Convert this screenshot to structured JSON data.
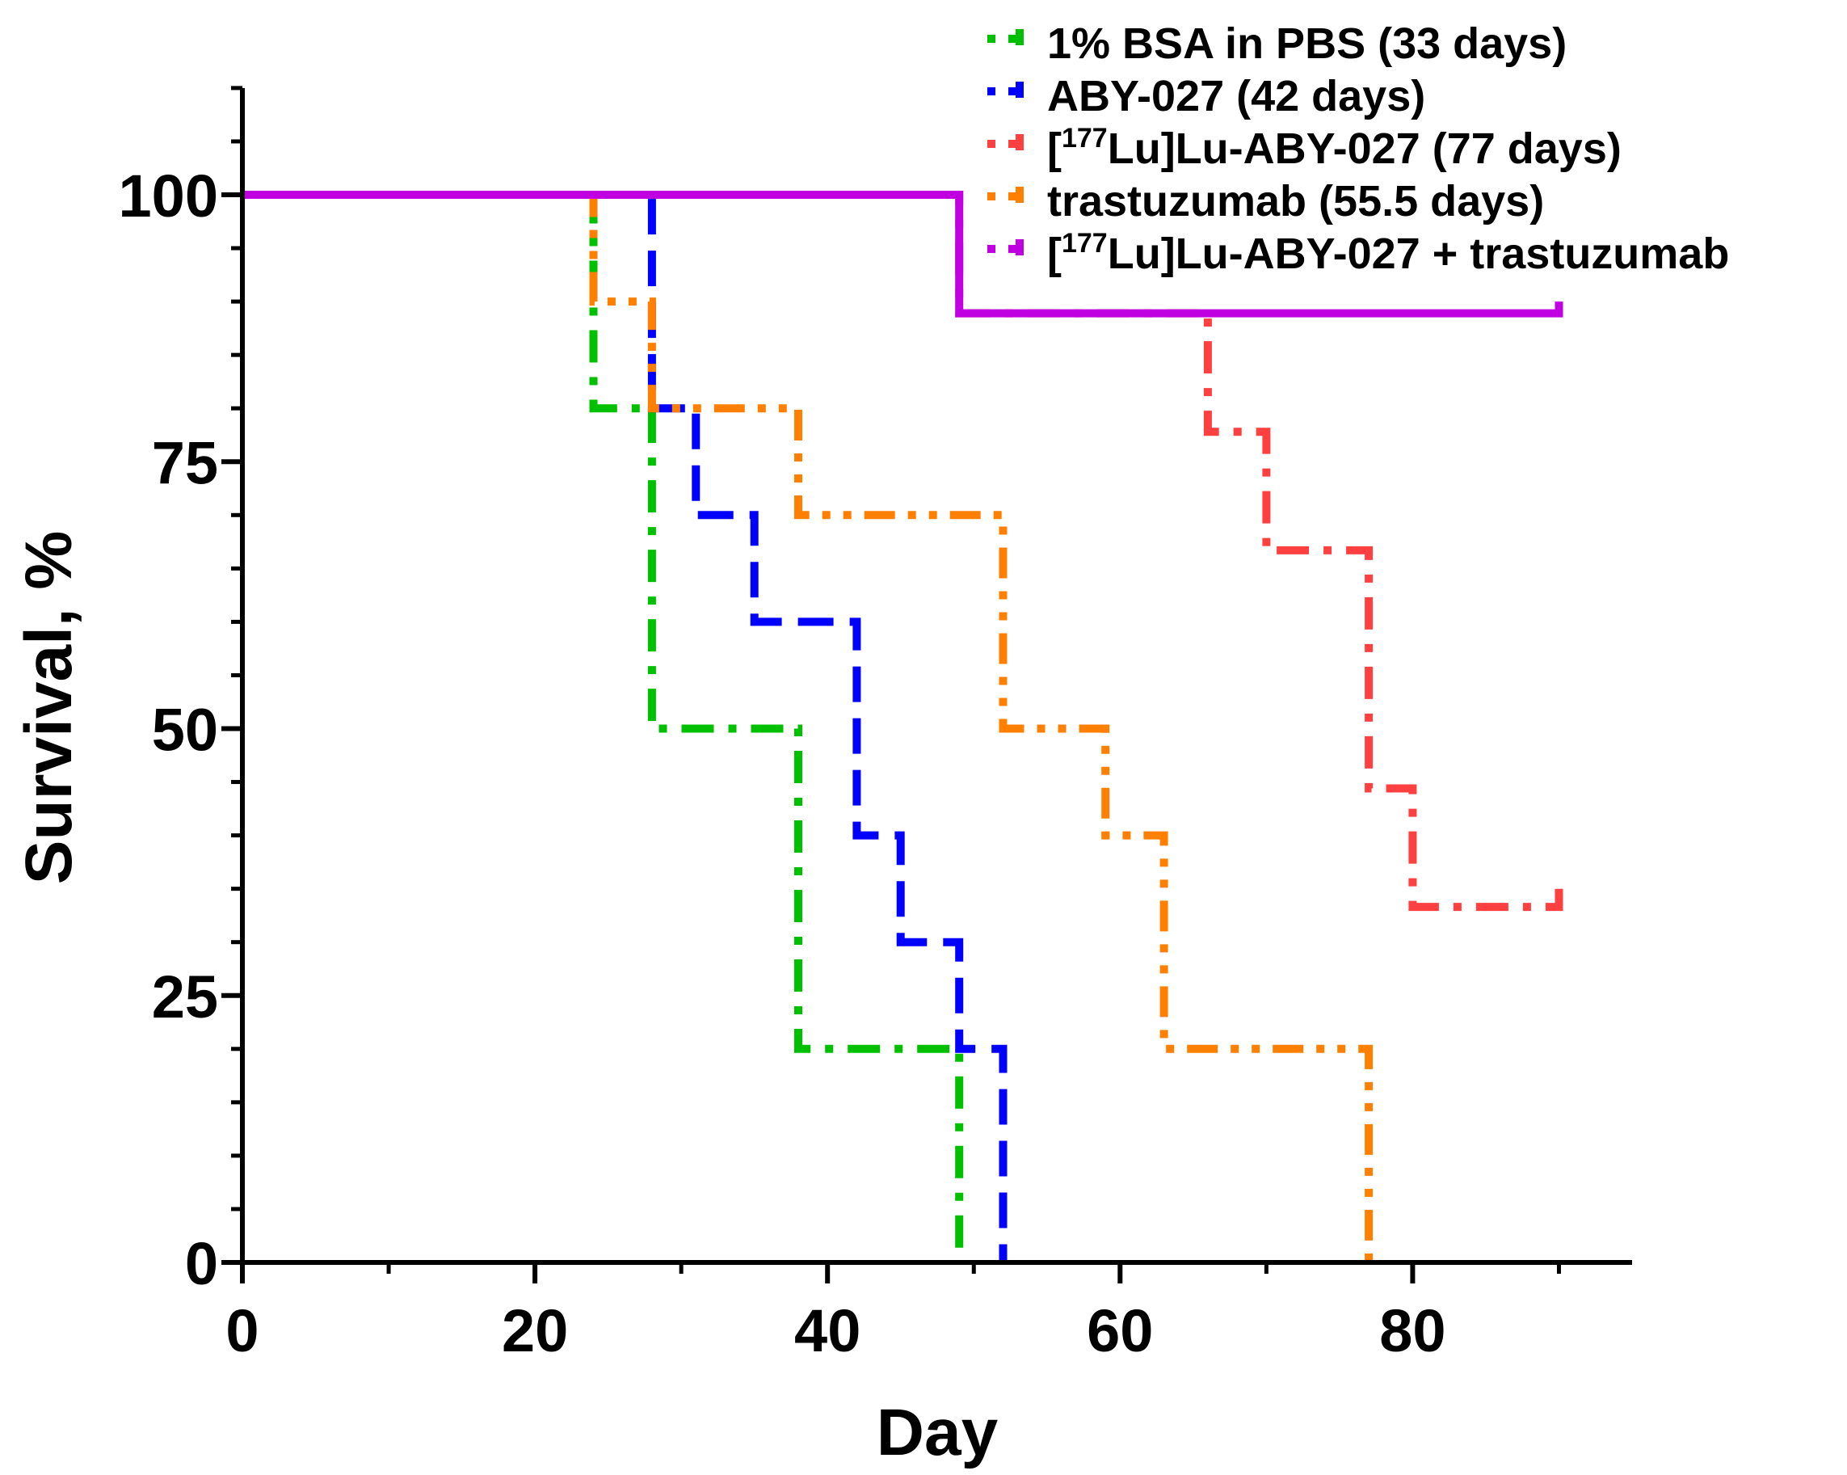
{
  "chart_data": {
    "type": "line",
    "subtype": "kaplan-meier step",
    "xlabel": "Day",
    "ylabel": "Survival, %",
    "xlim": [
      0,
      95
    ],
    "ylim": [
      0,
      110
    ],
    "xticks": [
      0,
      20,
      40,
      60,
      80
    ],
    "xtick_labels": [
      "0",
      "20",
      "40",
      "60",
      "80"
    ],
    "yticks": [
      0,
      25,
      50,
      75,
      100
    ],
    "ytick_labels": [
      "0",
      "25",
      "50",
      "75",
      "100"
    ],
    "grid": false,
    "legend_position": "top-right",
    "series": [
      {
        "name": "1% BSA in PBS (33 days)",
        "legend_parts": [
          "1% BSA in PBS (33 days)"
        ],
        "color": "#00c000",
        "dash": "dashdot",
        "points": [
          [
            0,
            100
          ],
          [
            24,
            100
          ],
          [
            24,
            80
          ],
          [
            28,
            80
          ],
          [
            28,
            50
          ],
          [
            38,
            50
          ],
          [
            38,
            20
          ],
          [
            49,
            20
          ],
          [
            49,
            0
          ]
        ]
      },
      {
        "name": "ABY-027 (42 days)",
        "legend_parts": [
          "ABY-027 (42 days)"
        ],
        "color": "#0000ff",
        "dash": "dash",
        "points": [
          [
            0,
            100
          ],
          [
            28,
            100
          ],
          [
            28,
            80
          ],
          [
            31,
            80
          ],
          [
            31,
            70
          ],
          [
            35,
            70
          ],
          [
            35,
            60
          ],
          [
            42,
            60
          ],
          [
            42,
            40
          ],
          [
            45,
            40
          ],
          [
            45,
            30
          ],
          [
            49,
            30
          ],
          [
            49,
            20
          ],
          [
            52,
            20
          ],
          [
            52,
            0
          ]
        ]
      },
      {
        "name": "[177Lu]Lu-ABY-027 (77 days)",
        "legend_parts": [
          "[",
          "177",
          "Lu]Lu-ABY-027 (77 days)"
        ],
        "color": "#ff4040",
        "dash": "dashdot",
        "points": [
          [
            0,
            100
          ],
          [
            49,
            100
          ],
          [
            49,
            88.9
          ],
          [
            66,
            88.9
          ],
          [
            66,
            77.8
          ],
          [
            70,
            77.8
          ],
          [
            70,
            66.7
          ],
          [
            77,
            66.7
          ],
          [
            77,
            44.4
          ],
          [
            80,
            44.4
          ],
          [
            80,
            33.3
          ],
          [
            90,
            33.3
          ],
          [
            90,
            35
          ]
        ]
      },
      {
        "name": "trastuzumab (55.5 days)",
        "legend_parts": [
          "trastuzumab (55.5 days)"
        ],
        "color": "#ff8000",
        "dash": "dashdotdot",
        "points": [
          [
            0,
            100
          ],
          [
            24,
            100
          ],
          [
            24,
            90
          ],
          [
            28,
            90
          ],
          [
            28,
            80
          ],
          [
            38,
            80
          ],
          [
            38,
            70
          ],
          [
            52,
            70
          ],
          [
            52,
            50
          ],
          [
            59,
            50
          ],
          [
            59,
            40
          ],
          [
            63,
            40
          ],
          [
            63,
            20
          ],
          [
            77,
            20
          ],
          [
            77,
            0
          ]
        ]
      },
      {
        "name": "[177Lu]Lu-ABY-027 + trastuzumab",
        "legend_parts": [
          "[",
          "177",
          "Lu]Lu-ABY-027 + trastuzumab"
        ],
        "color": "#c000e0",
        "dash": "solid",
        "points": [
          [
            0,
            100
          ],
          [
            49,
            100
          ],
          [
            49,
            88.9
          ],
          [
            90,
            88.9
          ],
          [
            90,
            90
          ]
        ]
      }
    ]
  }
}
